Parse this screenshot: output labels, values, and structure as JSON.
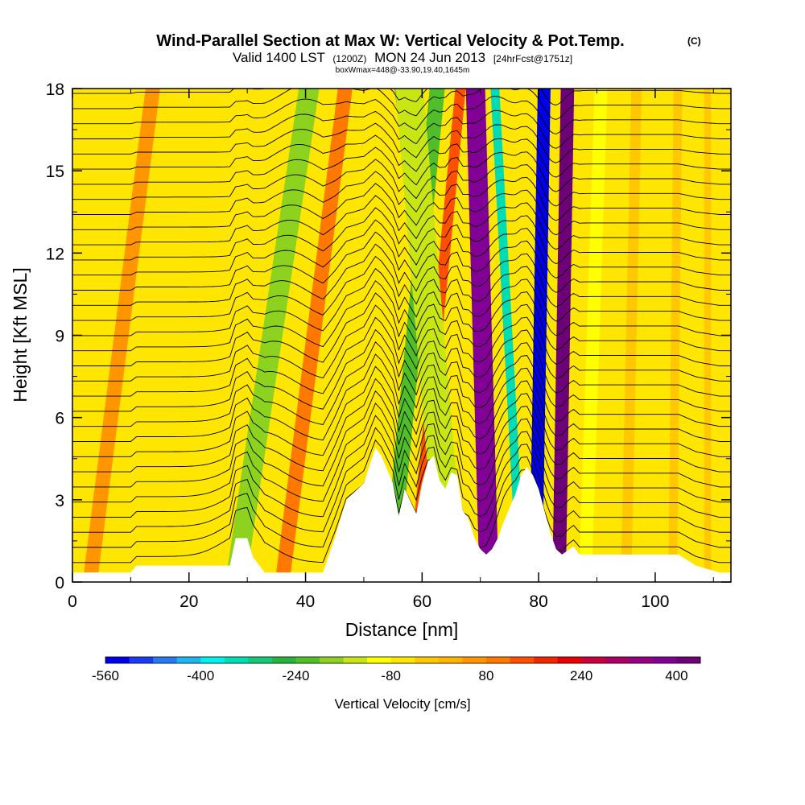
{
  "chart_data": {
    "type": "heatmap",
    "title": "Wind-Parallel Section at Max W: Vertical Velocity & Pot.Temp.",
    "title_mark": "(C)",
    "subtitle_main_a": "Valid 1400 LST",
    "subtitle_small_a": "(1200Z)",
    "subtitle_main_b": "MON 24 Jun 2013",
    "subtitle_small_b": "[24hrFcst@1751z]",
    "subtitle_2": "boxWmax=448@-33.90,19.40,1645m",
    "xlabel": "Distance [nm]",
    "ylabel": "Height [Kft MSL]",
    "xlim": [
      0,
      113
    ],
    "ylim": [
      0,
      18
    ],
    "x_ticks": [
      0,
      20,
      40,
      60,
      80,
      100
    ],
    "y_ticks": [
      0,
      3,
      6,
      9,
      12,
      15,
      18
    ],
    "colorbar": {
      "label": "Vertical Velocity [cm/s]",
      "min": -560,
      "max": 440,
      "step": 40,
      "tick_values": [
        -560,
        -400,
        -240,
        -80,
        80,
        240,
        400
      ],
      "colors": [
        "#0000e6",
        "#1a3cf0",
        "#2878f0",
        "#1eb4f0",
        "#00f0f0",
        "#00dcb4",
        "#14c878",
        "#28b43c",
        "#50be28",
        "#8cd21e",
        "#c8e614",
        "#ffff00",
        "#ffe600",
        "#ffc800",
        "#ffb400",
        "#ff9600",
        "#ff7800",
        "#ff5000",
        "#f02800",
        "#e60000",
        "#c8003c",
        "#aa0064",
        "#960082",
        "#820096",
        "#6e0078"
      ]
    },
    "velocity_bands": [
      {
        "x_at_surface": 28,
        "slope_nm_per_kft": 0.7,
        "width_nm": 3.5,
        "value_cm_s": -180
      },
      {
        "x_at_surface": 36,
        "slope_nm_per_kft": 0.6,
        "width_nm": 2.5,
        "value_cm_s": 100
      },
      {
        "x_at_surface": 54.5,
        "slope_nm_per_kft": 0.45,
        "width_nm": 2.6,
        "value_cm_s": -220
      },
      {
        "x_at_surface": 58.5,
        "slope_nm_per_kft": 0.45,
        "width_nm": 1.8,
        "value_cm_s": 150
      },
      {
        "x_at_surface": 66,
        "slope_nm_per_kft": -0.55,
        "width_nm": 1.6,
        "value_cm_s": -500
      },
      {
        "x_at_surface": 65,
        "slope_nm_per_kft": -0.4,
        "width_nm": 4.8,
        "value_cm_s": -160
      },
      {
        "x_at_surface": 71.5,
        "slope_nm_per_kft": -0.13,
        "width_nm": 3.3,
        "value_cm_s": 390
      },
      {
        "x_at_surface": 77,
        "slope_nm_per_kft": -0.25,
        "width_nm": 1.5,
        "value_cm_s": -360
      },
      {
        "x_at_surface": 79.5,
        "slope_nm_per_kft": 0.08,
        "width_nm": 2.2,
        "value_cm_s": -560
      },
      {
        "x_at_surface": 83.5,
        "slope_nm_per_kft": 0.08,
        "width_nm": 2.3,
        "value_cm_s": 430
      },
      {
        "x_at_surface": 88,
        "slope_nm_per_kft": 0.15,
        "width_nm": 2.2,
        "value_cm_s": -120
      },
      {
        "x_at_surface": 95,
        "slope_nm_per_kft": 0.1,
        "width_nm": 1.8,
        "value_cm_s": -40
      },
      {
        "x_at_surface": 103,
        "slope_nm_per_kft": 0.05,
        "width_nm": 1.5,
        "value_cm_s": -40
      },
      {
        "x_at_surface": 109,
        "slope_nm_per_kft": 0.0,
        "width_nm": 1.2,
        "value_cm_s": -40
      },
      {
        "x_at_surface": 3,
        "slope_nm_per_kft": 0.6,
        "width_nm": 2.5,
        "value_cm_s": 50
      }
    ],
    "terrain_kft": [
      [
        0,
        0.35
      ],
      [
        10,
        0.35
      ],
      [
        11,
        0.6
      ],
      [
        27,
        0.6
      ],
      [
        28,
        1.6
      ],
      [
        30,
        1.6
      ],
      [
        31,
        0.9
      ],
      [
        33,
        0.35
      ],
      [
        43,
        0.35
      ],
      [
        45,
        1.6
      ],
      [
        47,
        3.0
      ],
      [
        50,
        3.6
      ],
      [
        52,
        4.9
      ],
      [
        53,
        4.6
      ],
      [
        55,
        3.6
      ],
      [
        56,
        2.4
      ],
      [
        57,
        3.4
      ],
      [
        59,
        2.5
      ],
      [
        60,
        3.6
      ],
      [
        61,
        4.4
      ],
      [
        62,
        4.6
      ],
      [
        63,
        3.7
      ],
      [
        64,
        3.4
      ],
      [
        65,
        4.0
      ],
      [
        66,
        3.9
      ],
      [
        67,
        2.6
      ],
      [
        68,
        2.3
      ],
      [
        69,
        1.6
      ],
      [
        70,
        1.2
      ],
      [
        71,
        1.0
      ],
      [
        72,
        1.2
      ],
      [
        73,
        1.6
      ],
      [
        74,
        2.2
      ],
      [
        76,
        3.2
      ],
      [
        77,
        3.9
      ],
      [
        78,
        4.2
      ],
      [
        79,
        3.9
      ],
      [
        80,
        3.4
      ],
      [
        81,
        2.6
      ],
      [
        82,
        1.8
      ],
      [
        83,
        1.2
      ],
      [
        84,
        1.0
      ],
      [
        86,
        1.3
      ],
      [
        87,
        1.0
      ],
      [
        97,
        1.0
      ],
      [
        104,
        1.0
      ],
      [
        107,
        0.6
      ],
      [
        111,
        0.35
      ],
      [
        113,
        0.35
      ]
    ]
  }
}
